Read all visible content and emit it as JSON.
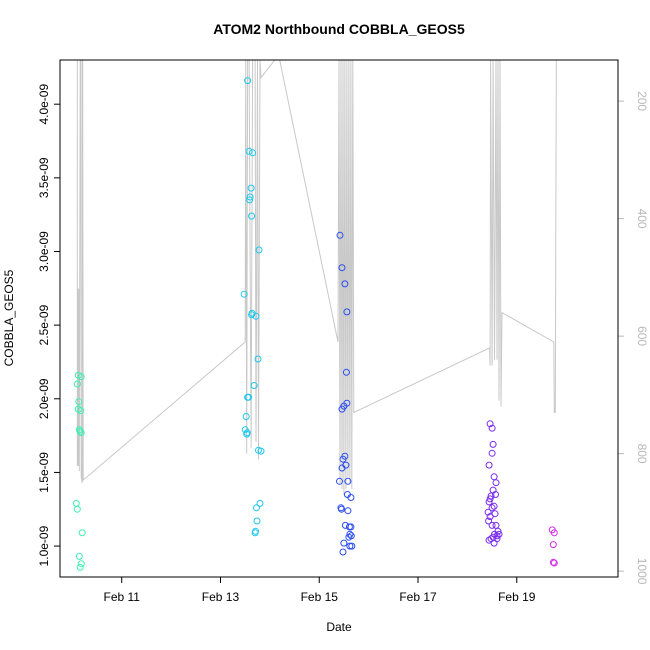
{
  "chart_data": {
    "type": "scatter",
    "title": "ATOM2 Northbound COBBLA_GEOS5",
    "xlabel": "Date",
    "ylabel": "COBBLA_GEOS5",
    "x_ticks": [
      "Feb 11",
      "Feb 13",
      "Feb 15",
      "Feb 17",
      "Feb 19"
    ],
    "x_tick_days": [
      11,
      13,
      15,
      17,
      19
    ],
    "xlim_days": [
      9.75,
      21.05
    ],
    "ylim": [
      7.9e-10,
      4.3e-09
    ],
    "y_ticks": [
      "1.0e-09",
      "1.5e-09",
      "2.0e-09",
      "2.5e-09",
      "3.0e-09",
      "3.5e-09",
      "4.0e-09"
    ],
    "y_tick_values": [
      1e-09,
      1.5e-09,
      2e-09,
      2.5e-09,
      3e-09,
      3.5e-09,
      4e-09
    ],
    "right_axis": {
      "ticks": [
        "200",
        "400",
        "600",
        "800",
        "1000"
      ],
      "tick_values": [
        200,
        400,
        600,
        800,
        1000
      ],
      "range": [
        130,
        1010
      ],
      "inverted": true,
      "color": "#b8b8b8"
    },
    "grid": false,
    "series": [
      {
        "color": "#3ef0b0",
        "points": [
          [
            10.08,
            1.29e-09
          ],
          [
            10.1,
            1.25e-09
          ],
          [
            10.12,
            2.16e-09
          ],
          [
            10.1,
            2.1e-09
          ],
          [
            10.13,
            1.98e-09
          ],
          [
            10.12,
            1.93e-09
          ],
          [
            10.17,
            1.92e-09
          ],
          [
            10.18,
            2.15e-09
          ],
          [
            10.16,
            1.78e-09
          ],
          [
            10.18,
            1.77e-09
          ],
          [
            10.14,
            1.79e-09
          ],
          [
            10.2,
            1.09e-09
          ],
          [
            10.14,
            9.3e-10
          ],
          [
            10.18,
            8.8e-10
          ],
          [
            10.16,
            8.55e-10
          ]
        ]
      },
      {
        "color": "#1ec8ee",
        "points": [
          [
            13.55,
            4.16e-09
          ],
          [
            13.58,
            3.68e-09
          ],
          [
            13.65,
            3.67e-09
          ],
          [
            13.62,
            3.43e-09
          ],
          [
            13.6,
            3.37e-09
          ],
          [
            13.59,
            3.35e-09
          ],
          [
            13.63,
            3.24e-09
          ],
          [
            13.78,
            3.01e-09
          ],
          [
            13.48,
            2.71e-09
          ],
          [
            13.64,
            2.58e-09
          ],
          [
            13.63,
            2.57e-09
          ],
          [
            13.72,
            2.56e-09
          ],
          [
            13.76,
            2.27e-09
          ],
          [
            13.68,
            2.09e-09
          ],
          [
            13.55,
            2.01e-09
          ],
          [
            13.57,
            2.01e-09
          ],
          [
            13.52,
            1.88e-09
          ],
          [
            13.5,
            1.79e-09
          ],
          [
            13.54,
            1.77e-09
          ],
          [
            13.53,
            1.76e-09
          ],
          [
            13.77,
            1.65e-09
          ],
          [
            13.82,
            1.645e-09
          ],
          [
            13.8,
            1.29e-09
          ],
          [
            13.73,
            1.26e-09
          ],
          [
            13.74,
            1.17e-09
          ],
          [
            13.71,
            1.1e-09
          ],
          [
            13.7,
            1.09e-09
          ]
        ]
      },
      {
        "color": "#2a4cf0",
        "points": [
          [
            15.42,
            3.11e-09
          ],
          [
            15.46,
            2.89e-09
          ],
          [
            15.52,
            2.78e-09
          ],
          [
            15.56,
            2.59e-09
          ],
          [
            15.55,
            2.18e-09
          ],
          [
            15.56,
            1.97e-09
          ],
          [
            15.5,
            1.95e-09
          ],
          [
            15.46,
            1.93e-09
          ],
          [
            15.52,
            1.61e-09
          ],
          [
            15.48,
            1.59e-09
          ],
          [
            15.54,
            1.55e-09
          ],
          [
            15.46,
            1.53e-09
          ],
          [
            15.41,
            1.44e-09
          ],
          [
            15.58,
            1.44e-09
          ],
          [
            15.57,
            1.35e-09
          ],
          [
            15.64,
            1.33e-09
          ],
          [
            15.44,
            1.26e-09
          ],
          [
            15.45,
            1.25e-09
          ],
          [
            15.58,
            1.24e-09
          ],
          [
            15.53,
            1.14e-09
          ],
          [
            15.61,
            1.13e-09
          ],
          [
            15.64,
            1.13e-09
          ],
          [
            15.62,
            1.08e-09
          ],
          [
            15.65,
            1.07e-09
          ],
          [
            15.6,
            1.06e-09
          ],
          [
            15.5,
            1.02e-09
          ],
          [
            15.62,
            1e-09
          ],
          [
            15.66,
            1e-09
          ],
          [
            15.48,
            9.6e-10
          ]
        ]
      },
      {
        "color": "#7a2cee",
        "points": [
          [
            18.46,
            1.83e-09
          ],
          [
            18.5,
            1.8e-09
          ],
          [
            18.52,
            1.69e-09
          ],
          [
            18.5,
            1.63e-09
          ],
          [
            18.44,
            1.55e-09
          ],
          [
            18.54,
            1.47e-09
          ],
          [
            18.58,
            1.43e-09
          ],
          [
            18.52,
            1.38e-09
          ],
          [
            18.48,
            1.34e-09
          ],
          [
            18.46,
            1.32e-09
          ],
          [
            18.57,
            1.35e-09
          ],
          [
            18.44,
            1.3e-09
          ],
          [
            18.5,
            1.26e-09
          ],
          [
            18.54,
            1.27e-09
          ],
          [
            18.42,
            1.23e-09
          ],
          [
            18.46,
            1.2e-09
          ],
          [
            18.56,
            1.22e-09
          ],
          [
            18.43,
            1.17e-09
          ],
          [
            18.5,
            1.14e-09
          ],
          [
            18.58,
            1.14e-09
          ],
          [
            18.62,
            1.1e-09
          ],
          [
            18.55,
            1.08e-09
          ],
          [
            18.6,
            1.07e-09
          ],
          [
            18.64,
            1.08e-09
          ],
          [
            18.52,
            1.06e-09
          ],
          [
            18.48,
            1.05e-09
          ],
          [
            18.6,
            1.05e-09
          ],
          [
            18.44,
            1.04e-09
          ],
          [
            18.54,
            1.02e-09
          ]
        ]
      },
      {
        "color": "#d22ee6",
        "points": [
          [
            19.72,
            1.11e-09
          ],
          [
            19.76,
            1.09e-09
          ],
          [
            19.74,
            1.01e-09
          ],
          [
            19.74,
            8.9e-10
          ],
          [
            19.76,
            8.85e-10
          ]
        ]
      }
    ],
    "altitude_line": {
      "color": "#c8c8c8",
      "axis": "right",
      "points": [
        [
          10.1,
          130
        ],
        [
          10.1,
          820
        ],
        [
          10.12,
          820
        ],
        [
          10.12,
          520
        ],
        [
          10.13,
          520
        ],
        [
          10.14,
          830
        ],
        [
          10.16,
          130
        ],
        [
          10.17,
          130
        ],
        [
          10.18,
          840
        ],
        [
          10.2,
          850
        ],
        [
          10.2,
          130
        ],
        [
          10.21,
          130
        ],
        [
          10.22,
          845
        ],
        [
          13.5,
          610
        ],
        [
          13.51,
          130
        ],
        [
          13.53,
          800
        ],
        [
          13.55,
          130
        ],
        [
          13.58,
          130
        ],
        [
          13.62,
          790
        ],
        [
          13.65,
          130
        ],
        [
          13.7,
          130
        ],
        [
          13.72,
          780
        ],
        [
          13.75,
          130
        ],
        [
          13.77,
          810
        ],
        [
          13.8,
          130
        ],
        [
          13.82,
          160
        ],
        [
          14.1,
          130
        ],
        [
          14.2,
          130
        ],
        [
          15.38,
          610
        ],
        [
          15.4,
          130
        ],
        [
          15.42,
          850
        ],
        [
          15.44,
          130
        ],
        [
          15.46,
          860
        ],
        [
          15.48,
          130
        ],
        [
          15.5,
          870
        ],
        [
          15.52,
          130
        ],
        [
          15.54,
          860
        ],
        [
          15.56,
          130
        ],
        [
          15.58,
          840
        ],
        [
          15.6,
          130
        ],
        [
          15.62,
          850
        ],
        [
          15.64,
          130
        ],
        [
          15.66,
          860
        ],
        [
          15.68,
          130
        ],
        [
          15.7,
          730
        ],
        [
          18.45,
          620
        ],
        [
          18.46,
          650
        ],
        [
          18.47,
          130
        ],
        [
          18.5,
          650
        ],
        [
          18.52,
          130
        ],
        [
          18.55,
          640
        ],
        [
          18.58,
          130
        ],
        [
          18.6,
          640
        ],
        [
          18.62,
          130
        ],
        [
          18.64,
          710
        ],
        [
          18.66,
          130
        ],
        [
          18.68,
          720
        ],
        [
          18.7,
          560
        ],
        [
          19.75,
          610
        ],
        [
          19.76,
          730
        ],
        [
          19.78,
          730
        ],
        [
          19.8,
          130
        ]
      ]
    }
  }
}
